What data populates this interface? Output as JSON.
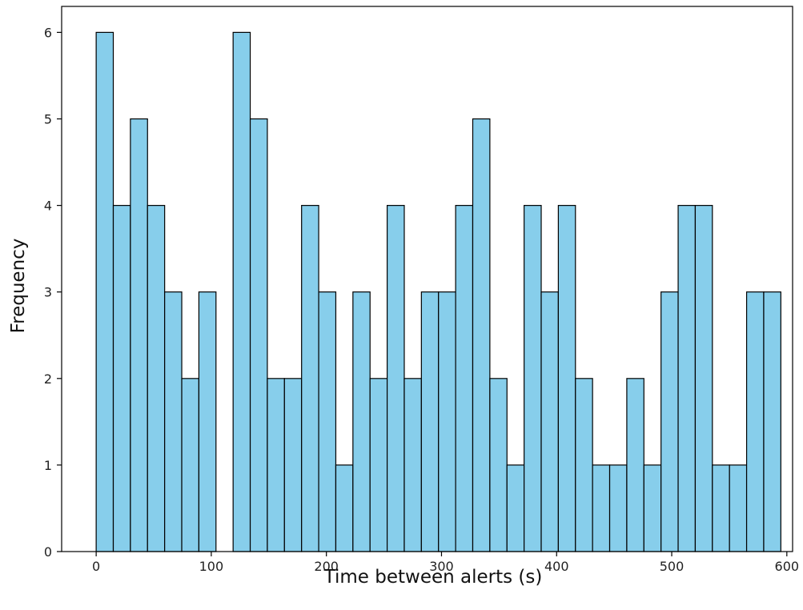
{
  "chart_data": {
    "type": "bar",
    "title": "",
    "xlabel": "Time between alerts (s)",
    "ylabel": "Frequency",
    "xlim": [
      -30,
      605
    ],
    "ylim": [
      0,
      6.3
    ],
    "grid": false,
    "bar_color": "#87ceeb",
    "edge_color": "#000000",
    "bin_width": 14.87,
    "bins": [
      {
        "x0": 0.0,
        "count": 6
      },
      {
        "x0": 14.87,
        "count": 4
      },
      {
        "x0": 29.74,
        "count": 5
      },
      {
        "x0": 44.61,
        "count": 4
      },
      {
        "x0": 59.48,
        "count": 3
      },
      {
        "x0": 74.35,
        "count": 2
      },
      {
        "x0": 89.22,
        "count": 3
      },
      {
        "x0": 104.09,
        "count": 0
      },
      {
        "x0": 118.96,
        "count": 6
      },
      {
        "x0": 133.83,
        "count": 5
      },
      {
        "x0": 148.7,
        "count": 2
      },
      {
        "x0": 163.57,
        "count": 2
      },
      {
        "x0": 178.44,
        "count": 4
      },
      {
        "x0": 193.31,
        "count": 3
      },
      {
        "x0": 208.18,
        "count": 1
      },
      {
        "x0": 223.05,
        "count": 3
      },
      {
        "x0": 237.92,
        "count": 2
      },
      {
        "x0": 252.79,
        "count": 4
      },
      {
        "x0": 267.66,
        "count": 2
      },
      {
        "x0": 282.53,
        "count": 3
      },
      {
        "x0": 297.4,
        "count": 3
      },
      {
        "x0": 312.27,
        "count": 4
      },
      {
        "x0": 327.14,
        "count": 5
      },
      {
        "x0": 342.01,
        "count": 2
      },
      {
        "x0": 356.88,
        "count": 1
      },
      {
        "x0": 371.75,
        "count": 4
      },
      {
        "x0": 386.62,
        "count": 3
      },
      {
        "x0": 401.49,
        "count": 4
      },
      {
        "x0": 416.36,
        "count": 2
      },
      {
        "x0": 431.23,
        "count": 1
      },
      {
        "x0": 446.1,
        "count": 1
      },
      {
        "x0": 460.97,
        "count": 2
      },
      {
        "x0": 475.84,
        "count": 1
      },
      {
        "x0": 490.71,
        "count": 3
      },
      {
        "x0": 505.58,
        "count": 4
      },
      {
        "x0": 520.45,
        "count": 4
      },
      {
        "x0": 535.32,
        "count": 1
      },
      {
        "x0": 550.19,
        "count": 1
      },
      {
        "x0": 565.06,
        "count": 3
      },
      {
        "x0": 579.93,
        "count": 3
      }
    ],
    "x_ticks": [
      0,
      100,
      200,
      300,
      400,
      500,
      600
    ],
    "y_ticks": [
      0,
      1,
      2,
      3,
      4,
      5,
      6
    ]
  }
}
